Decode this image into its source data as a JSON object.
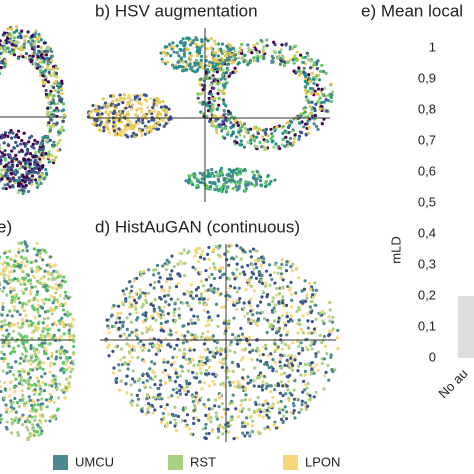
{
  "scatter_panels": [
    {
      "title": null
    },
    {
      "title": "b) HSV augmentation"
    },
    {
      "title": "e)"
    },
    {
      "title": "d) HistAuGAN (continuous)"
    }
  ],
  "chart_data": {
    "type": "bar",
    "title": "e) Mean local",
    "y_label": "mLD",
    "categories": [
      "No au"
    ],
    "values": [
      0.2
    ],
    "color": "#dcdcdc",
    "ylim": [
      0,
      1
    ],
    "yticks": [
      0,
      {
        "value": 0.1,
        "label": "0,1"
      },
      {
        "value": 0.2,
        "label": "0,2"
      },
      {
        "value": 0.3,
        "label": "0,3"
      },
      {
        "value": 0.4,
        "label": "0,4"
      },
      {
        "value": 0.5,
        "label": "0,5"
      },
      {
        "value": 0.6,
        "label": "0,6"
      },
      {
        "value": 0.7,
        "label": "0,7"
      },
      {
        "value": 0.8,
        "label": "0,8"
      },
      {
        "value": 0.9,
        "label": "0,9"
      },
      1
    ]
  },
  "legend": [
    {
      "name": "UMCU",
      "color": "#4a8a8e"
    },
    {
      "name": "RST",
      "color": "#a8cf82"
    },
    {
      "name": "LPON",
      "color": "#f3d77a"
    }
  ]
}
